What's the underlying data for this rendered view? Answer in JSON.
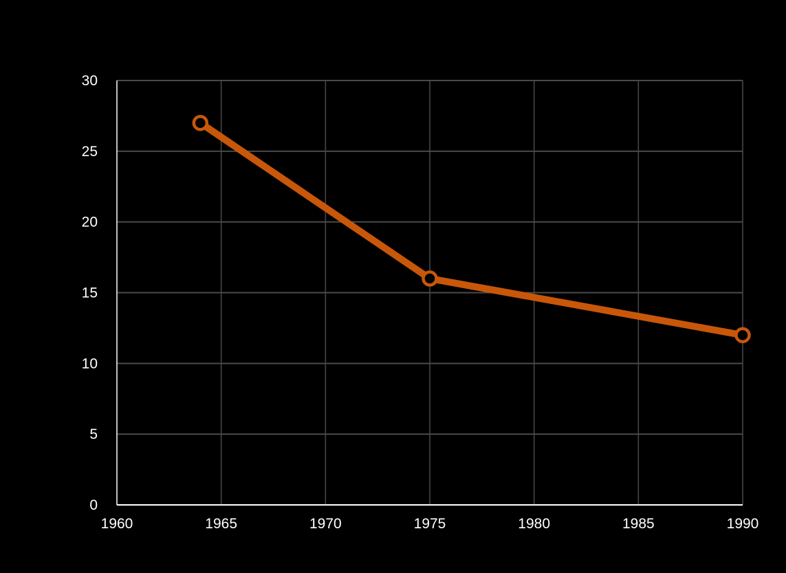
{
  "chart_data": {
    "type": "line",
    "title": "",
    "xlabel": "",
    "ylabel": "",
    "xlim": [
      1960,
      1990
    ],
    "ylim": [
      0,
      30
    ],
    "x_ticks": [
      1960,
      1965,
      1970,
      1975,
      1980,
      1985,
      1990
    ],
    "y_ticks": [
      0,
      5,
      10,
      15,
      20,
      25,
      30
    ],
    "grid": true,
    "legend": "none",
    "series": [
      {
        "color": "#c8570a",
        "marker": "hollow-circle",
        "points": [
          {
            "x": 1964,
            "y": 27
          },
          {
            "x": 1975,
            "y": 16
          },
          {
            "x": 1990,
            "y": 12
          }
        ]
      }
    ]
  },
  "colors": {
    "background": "#000000",
    "grid": "#4a4a4a",
    "axis": "#ffffff",
    "text": "#ffffff",
    "series": "#c8570a"
  }
}
